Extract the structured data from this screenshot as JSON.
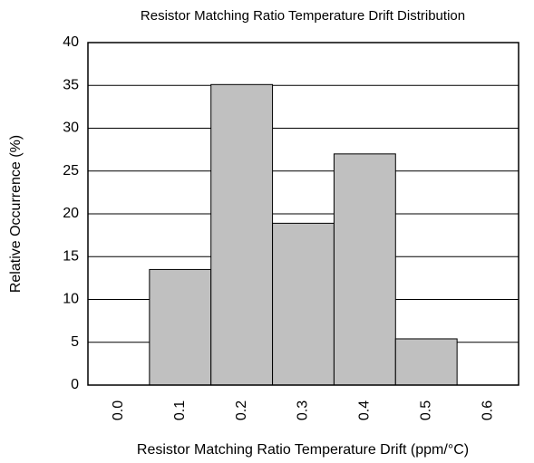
{
  "chart_data": {
    "type": "bar",
    "title": "Resistor Matching Ratio Temperature Drift Distribution",
    "x_label": "Resistor Matching Ratio Temperature Drift (ppm/°C)",
    "y_label": "Relative Occurrence (%)",
    "categories": [
      "0.0",
      "0.1",
      "0.2",
      "0.3",
      "0.4",
      "0.5",
      "0.6"
    ],
    "values": [
      0,
      13.5,
      35.1,
      18.9,
      27,
      5.4,
      0
    ],
    "color": "#c0c0c0",
    "ylim": [
      0,
      40
    ],
    "yticks": [
      0,
      5,
      10,
      15,
      20,
      25,
      30,
      35,
      40
    ],
    "grid": true
  }
}
